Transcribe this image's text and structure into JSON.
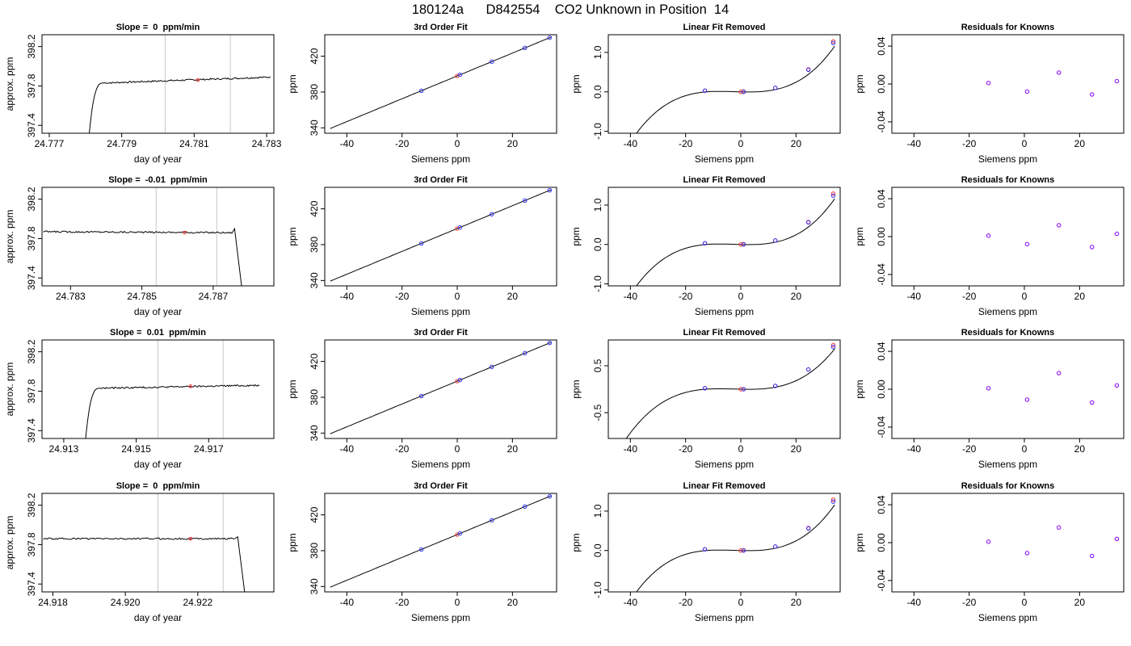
{
  "page_title": "180124a      D842554    CO2 Unknown in Position  14",
  "colors": {
    "trace": "#000000",
    "window_lines": "#c8c8c8",
    "mean_marker": "#ff3333",
    "fit_line": "#000000",
    "points_blue": "#3333ff",
    "points_red": "#ff3333",
    "points_purple": "#8800ee"
  },
  "chart_data": [
    {
      "type": "line",
      "title": "Slope =  0  ppm/min",
      "xlabel": "day of year",
      "ylabel": "approx. ppm",
      "xlim": [
        24.7768,
        24.7832
      ],
      "ylim": [
        397.32,
        398.32
      ],
      "xticks": [
        "24.777",
        "24.779",
        "24.781",
        "24.783"
      ],
      "xtick_values": [
        24.777,
        24.779,
        24.781,
        24.783
      ],
      "yticks": [
        "397.4",
        "397.8",
        "398.2"
      ],
      "ytick_values": [
        397.4,
        397.8,
        398.2
      ],
      "trace": {
        "start_x": 24.7781,
        "rise_end_x": 24.7785,
        "end_x": 24.7831,
        "start_y": 397.3,
        "level_start": 397.83,
        "level_end": 397.89,
        "noise": 0.008,
        "drop": null
      },
      "vlines": [
        24.7802,
        24.782
      ],
      "marker": {
        "x": 24.7811,
        "y": 397.86
      }
    },
    {
      "type": "scatter",
      "title": "3rd Order Fit",
      "xlabel": "Siemens ppm",
      "ylabel": "ppm",
      "xlim": [
        -48,
        36
      ],
      "ylim": [
        334,
        444
      ],
      "xticks": [
        "-40",
        "-20",
        "0",
        "20"
      ],
      "xtick_values": [
        -40,
        -20,
        0,
        20
      ],
      "yticks": [
        "340",
        "380",
        "420"
      ],
      "ytick_values": [
        340,
        380,
        420
      ],
      "fit": {
        "type": "line",
        "x_start": -46,
        "x_end": 34,
        "y_at_zero": 398,
        "slope": 1.275
      },
      "points_known": [
        {
          "x": -13,
          "y": 381.4
        },
        {
          "x": 1,
          "y": 399.3
        },
        {
          "x": 12.5,
          "y": 413.9
        },
        {
          "x": 24.5,
          "y": 429.3
        },
        {
          "x": 33.5,
          "y": 440.7
        }
      ],
      "points_unknown": [
        {
          "x": 0,
          "y": 398
        }
      ]
    },
    {
      "type": "scatter",
      "title": "Linear Fit Removed",
      "xlabel": "Siemens ppm",
      "ylabel": "ppm",
      "xlim": [
        -48,
        36
      ],
      "ylim": [
        -1.05,
        1.45
      ],
      "xticks": [
        "-40",
        "-20",
        "0",
        "20"
      ],
      "xtick_values": [
        -40,
        -20,
        0,
        20
      ],
      "yticks": [
        "-1.0",
        "0.0",
        "1.0"
      ],
      "ytick_values": [
        -1,
        0,
        1
      ],
      "fit": {
        "type": "cubic",
        "x_start": -46,
        "x_end": 34,
        "coef": [
          0,
          -0.00167,
          0.000185,
          2.55e-05
        ]
      },
      "points_known": [
        {
          "x": -13,
          "y": 0.03
        },
        {
          "x": 1,
          "y": 0
        },
        {
          "x": 12.5,
          "y": 0.1
        },
        {
          "x": 24.5,
          "y": 0.56
        },
        {
          "x": 33.5,
          "y": 1.24
        }
      ],
      "points_known_red": [
        {
          "x": -13,
          "y": 0.03
        },
        {
          "x": 1,
          "y": 0.01
        },
        {
          "x": 12.5,
          "y": 0.1
        },
        {
          "x": 24.5,
          "y": 0.57
        },
        {
          "x": 33.5,
          "y": 1.28
        }
      ],
      "points_unknown": [
        {
          "x": 0,
          "y": 0
        }
      ]
    },
    {
      "type": "scatter",
      "title": "Residuals for Knowns",
      "xlabel": "Siemens ppm",
      "ylabel": "ppm",
      "xlim": [
        -48,
        36
      ],
      "ylim": [
        -0.052,
        0.052
      ],
      "xticks": [
        "-40",
        "-20",
        "0",
        "20"
      ],
      "xtick_values": [
        -40,
        -20,
        0,
        20
      ],
      "yticks": [
        "-0.04",
        "0.00",
        "0.04"
      ],
      "ytick_values": [
        -0.04,
        0,
        0.04
      ],
      "points_residual": [
        {
          "x": -13,
          "y": 0.001
        },
        {
          "x": 1,
          "y": -0.008
        },
        {
          "x": 12.5,
          "y": 0.012
        },
        {
          "x": 24.5,
          "y": -0.011
        },
        {
          "x": 33.5,
          "y": 0.003
        }
      ]
    },
    {
      "type": "line",
      "title": "Slope =  -0.01  ppm/min",
      "xlabel": "day of year",
      "ylabel": "approx. ppm",
      "xlim": [
        24.7822,
        24.7887
      ],
      "ylim": [
        397.32,
        398.32
      ],
      "xticks": [
        "24.783",
        "24.785",
        "24.787"
      ],
      "xtick_values": [
        24.783,
        24.785,
        24.787
      ],
      "yticks": [
        "397.4",
        "397.8",
        "398.2"
      ],
      "ytick_values": [
        397.4,
        397.8,
        398.2
      ],
      "trace": {
        "start_x": 24.7822,
        "rise_end_x": null,
        "end_x": 24.7877,
        "start_y": null,
        "level_start": 397.87,
        "level_end": 397.86,
        "noise": 0.008,
        "drop": {
          "bump_x": 24.7876,
          "bump_y": 397.9,
          "end_x": 24.7878,
          "end_y": 397.3
        }
      },
      "vlines": [
        24.7854,
        24.7871
      ],
      "marker": {
        "x": 24.7862,
        "y": 397.86
      }
    },
    {
      "type": "scatter",
      "title": "3rd Order Fit",
      "xlabel": "Siemens ppm",
      "ylabel": "ppm",
      "xlim": [
        -48,
        36
      ],
      "ylim": [
        334,
        444
      ],
      "xticks": [
        "-40",
        "-20",
        "0",
        "20"
      ],
      "xtick_values": [
        -40,
        -20,
        0,
        20
      ],
      "yticks": [
        "340",
        "380",
        "420"
      ],
      "ytick_values": [
        340,
        380,
        420
      ],
      "fit": {
        "type": "line",
        "x_start": -46,
        "x_end": 34,
        "y_at_zero": 398,
        "slope": 1.275
      },
      "points_known": [
        {
          "x": -13,
          "y": 381.4
        },
        {
          "x": 1,
          "y": 399.3
        },
        {
          "x": 12.5,
          "y": 413.9
        },
        {
          "x": 24.5,
          "y": 429.3
        },
        {
          "x": 33.5,
          "y": 440.7
        }
      ],
      "points_unknown": [
        {
          "x": 0,
          "y": 398
        }
      ]
    },
    {
      "type": "scatter",
      "title": "Linear Fit Removed",
      "xlabel": "Siemens ppm",
      "ylabel": "ppm",
      "xlim": [
        -48,
        36
      ],
      "ylim": [
        -1.05,
        1.45
      ],
      "xticks": [
        "-40",
        "-20",
        "0",
        "20"
      ],
      "xtick_values": [
        -40,
        -20,
        0,
        20
      ],
      "yticks": [
        "-1.0",
        "0.0",
        "1.0"
      ],
      "ytick_values": [
        -1,
        0,
        1
      ],
      "fit": {
        "type": "cubic",
        "x_start": -46,
        "x_end": 34,
        "coef": [
          0,
          -0.00167,
          0.000185,
          2.55e-05
        ]
      },
      "points_known": [
        {
          "x": -13,
          "y": 0.03
        },
        {
          "x": 1,
          "y": 0
        },
        {
          "x": 12.5,
          "y": 0.1
        },
        {
          "x": 24.5,
          "y": 0.56
        },
        {
          "x": 33.5,
          "y": 1.24
        }
      ],
      "points_known_red": [
        {
          "x": -13,
          "y": 0.03
        },
        {
          "x": 1,
          "y": 0.01
        },
        {
          "x": 12.5,
          "y": 0.1
        },
        {
          "x": 24.5,
          "y": 0.57
        },
        {
          "x": 33.5,
          "y": 1.29
        }
      ],
      "points_unknown": [
        {
          "x": 0,
          "y": 0
        }
      ]
    },
    {
      "type": "scatter",
      "title": "Residuals for Knowns",
      "xlabel": "Siemens ppm",
      "ylabel": "ppm",
      "xlim": [
        -48,
        36
      ],
      "ylim": [
        -0.052,
        0.052
      ],
      "xticks": [
        "-40",
        "-20",
        "0",
        "20"
      ],
      "xtick_values": [
        -40,
        -20,
        0,
        20
      ],
      "yticks": [
        "-0.04",
        "0.00",
        "0.04"
      ],
      "ytick_values": [
        -0.04,
        0,
        0.04
      ],
      "points_residual": [
        {
          "x": -13,
          "y": 0.001
        },
        {
          "x": 1,
          "y": -0.008
        },
        {
          "x": 12.5,
          "y": 0.012
        },
        {
          "x": 24.5,
          "y": -0.011
        },
        {
          "x": 33.5,
          "y": 0.003
        }
      ]
    },
    {
      "type": "line",
      "title": "Slope =  0.01  ppm/min",
      "xlabel": "day of year",
      "ylabel": "approx. ppm",
      "xlim": [
        24.9124,
        24.9188
      ],
      "ylim": [
        397.32,
        398.32
      ],
      "xticks": [
        "24.913",
        "24.915",
        "24.917"
      ],
      "xtick_values": [
        24.913,
        24.915,
        24.917
      ],
      "yticks": [
        "397.4",
        "397.8",
        "398.2"
      ],
      "ytick_values": [
        397.4,
        397.8,
        398.2
      ],
      "trace": {
        "start_x": 24.9136,
        "rise_end_x": 24.914,
        "end_x": 24.9184,
        "start_y": 397.3,
        "level_start": 397.83,
        "level_end": 397.86,
        "noise": 0.008,
        "drop": null
      },
      "vlines": [
        24.9156,
        24.9174
      ],
      "marker": {
        "x": 24.9165,
        "y": 397.85
      }
    },
    {
      "type": "scatter",
      "title": "3rd Order Fit",
      "xlabel": "Siemens ppm",
      "ylabel": "ppm",
      "xlim": [
        -48,
        36
      ],
      "ylim": [
        334,
        444
      ],
      "xticks": [
        "-40",
        "-20",
        "0",
        "20"
      ],
      "xtick_values": [
        -40,
        -20,
        0,
        20
      ],
      "yticks": [
        "340",
        "380",
        "420"
      ],
      "ytick_values": [
        340,
        380,
        420
      ],
      "fit": {
        "type": "line",
        "x_start": -46,
        "x_end": 34,
        "y_at_zero": 398,
        "slope": 1.275
      },
      "points_known": [
        {
          "x": -13,
          "y": 381.4
        },
        {
          "x": 1,
          "y": 399.3
        },
        {
          "x": 12.5,
          "y": 413.9
        },
        {
          "x": 24.5,
          "y": 429.3
        },
        {
          "x": 33.5,
          "y": 440.7
        }
      ],
      "points_unknown": [
        {
          "x": 0,
          "y": 398
        }
      ]
    },
    {
      "type": "scatter",
      "title": "Linear Fit Removed",
      "xlabel": "Siemens ppm",
      "ylabel": "ppm",
      "xlim": [
        -48,
        36
      ],
      "ylim": [
        -1.05,
        1.05
      ],
      "xticks": [
        "-40",
        "-20",
        "0",
        "20"
      ],
      "xtick_values": [
        -40,
        -20,
        0,
        20
      ],
      "yticks": [
        "-0.5",
        "0.5"
      ],
      "ytick_values": [
        -0.5,
        0.5
      ],
      "fit": {
        "type": "cubic",
        "x_start": -46,
        "x_end": 34,
        "coef": [
          0,
          -0.00125,
          0.00014,
          1.88e-05
        ]
      },
      "points_known": [
        {
          "x": -13,
          "y": 0.02
        },
        {
          "x": 1,
          "y": 0
        },
        {
          "x": 12.5,
          "y": 0.07
        },
        {
          "x": 24.5,
          "y": 0.42
        },
        {
          "x": 33.5,
          "y": 0.9
        }
      ],
      "points_known_red": [
        {
          "x": -13,
          "y": 0.02
        },
        {
          "x": 1,
          "y": 0
        },
        {
          "x": 12.5,
          "y": 0.07
        },
        {
          "x": 24.5,
          "y": 0.42
        },
        {
          "x": 33.5,
          "y": 0.94
        }
      ],
      "points_unknown": [
        {
          "x": 0,
          "y": 0
        }
      ]
    },
    {
      "type": "scatter",
      "title": "Residuals for Knowns",
      "xlabel": "Siemens ppm",
      "ylabel": "ppm",
      "xlim": [
        -48,
        36
      ],
      "ylim": [
        -0.052,
        0.052
      ],
      "xticks": [
        "-40",
        "-20",
        "0",
        "20"
      ],
      "xtick_values": [
        -40,
        -20,
        0,
        20
      ],
      "yticks": [
        "-0.04",
        "0.00",
        "0.04"
      ],
      "ytick_values": [
        -0.04,
        0,
        0.04
      ],
      "points_residual": [
        {
          "x": -13,
          "y": 0.001
        },
        {
          "x": 1,
          "y": -0.011
        },
        {
          "x": 12.5,
          "y": 0.017
        },
        {
          "x": 24.5,
          "y": -0.014
        },
        {
          "x": 33.5,
          "y": 0.004
        }
      ]
    },
    {
      "type": "line",
      "title": "Slope =  0  ppm/min",
      "xlabel": "day of year",
      "ylabel": "approx. ppm",
      "xlim": [
        24.9177,
        24.9241
      ],
      "ylim": [
        397.32,
        398.32
      ],
      "xticks": [
        "24.918",
        "24.920",
        "24.922"
      ],
      "xtick_values": [
        24.918,
        24.92,
        24.922
      ],
      "yticks": [
        "397.4",
        "397.8",
        "398.2"
      ],
      "ytick_values": [
        397.4,
        397.8,
        398.2
      ],
      "trace": {
        "start_x": 24.9177,
        "rise_end_x": null,
        "end_x": 24.9232,
        "start_y": null,
        "level_start": 397.86,
        "level_end": 397.86,
        "noise": 0.008,
        "drop": {
          "bump_x": 24.9231,
          "bump_y": 397.88,
          "end_x": 24.9233,
          "end_y": 397.3
        }
      },
      "vlines": [
        24.9209,
        24.9227
      ],
      "marker": {
        "x": 24.9218,
        "y": 397.86
      }
    },
    {
      "type": "scatter",
      "title": "3rd Order Fit",
      "xlabel": "Siemens ppm",
      "ylabel": "ppm",
      "xlim": [
        -48,
        36
      ],
      "ylim": [
        334,
        444
      ],
      "xticks": [
        "-40",
        "-20",
        "0",
        "20"
      ],
      "xtick_values": [
        -40,
        -20,
        0,
        20
      ],
      "yticks": [
        "340",
        "380",
        "420"
      ],
      "ytick_values": [
        340,
        380,
        420
      ],
      "fit": {
        "type": "line",
        "x_start": -46,
        "x_end": 34,
        "y_at_zero": 398,
        "slope": 1.275
      },
      "points_known": [
        {
          "x": -13,
          "y": 381.4
        },
        {
          "x": 1,
          "y": 399.3
        },
        {
          "x": 12.5,
          "y": 413.9
        },
        {
          "x": 24.5,
          "y": 429.3
        },
        {
          "x": 33.5,
          "y": 440.7
        }
      ],
      "points_unknown": [
        {
          "x": 0,
          "y": 398
        }
      ]
    },
    {
      "type": "scatter",
      "title": "Linear Fit Removed",
      "xlabel": "Siemens ppm",
      "ylabel": "ppm",
      "xlim": [
        -48,
        36
      ],
      "ylim": [
        -1.05,
        1.45
      ],
      "xticks": [
        "-40",
        "-20",
        "0",
        "20"
      ],
      "xtick_values": [
        -40,
        -20,
        0,
        20
      ],
      "yticks": [
        "-1.0",
        "0.0",
        "1.0"
      ],
      "ytick_values": [
        -1,
        0,
        1
      ],
      "fit": {
        "type": "cubic",
        "x_start": -46,
        "x_end": 34,
        "coef": [
          0,
          -0.00167,
          0.000185,
          2.55e-05
        ]
      },
      "points_known": [
        {
          "x": -13,
          "y": 0.03
        },
        {
          "x": 1,
          "y": 0
        },
        {
          "x": 12.5,
          "y": 0.1
        },
        {
          "x": 24.5,
          "y": 0.56
        },
        {
          "x": 33.5,
          "y": 1.24
        }
      ],
      "points_known_red": [
        {
          "x": -13,
          "y": 0.03
        },
        {
          "x": 1,
          "y": 0.01
        },
        {
          "x": 12.5,
          "y": 0.1
        },
        {
          "x": 24.5,
          "y": 0.57
        },
        {
          "x": 33.5,
          "y": 1.29
        }
      ],
      "points_unknown": [
        {
          "x": 0,
          "y": 0
        }
      ]
    },
    {
      "type": "scatter",
      "title": "Residuals for Knowns",
      "xlabel": "Siemens ppm",
      "ylabel": "ppm",
      "xlim": [
        -48,
        36
      ],
      "ylim": [
        -0.052,
        0.052
      ],
      "xticks": [
        "-40",
        "-20",
        "0",
        "20"
      ],
      "xtick_values": [
        -40,
        -20,
        0,
        20
      ],
      "yticks": [
        "-0.04",
        "0.00",
        "0.04"
      ],
      "ytick_values": [
        -0.04,
        0,
        0.04
      ],
      "points_residual": [
        {
          "x": -13,
          "y": 0.001
        },
        {
          "x": 1,
          "y": -0.011
        },
        {
          "x": 12.5,
          "y": 0.016
        },
        {
          "x": 24.5,
          "y": -0.014
        },
        {
          "x": 33.5,
          "y": 0.004
        }
      ]
    }
  ]
}
